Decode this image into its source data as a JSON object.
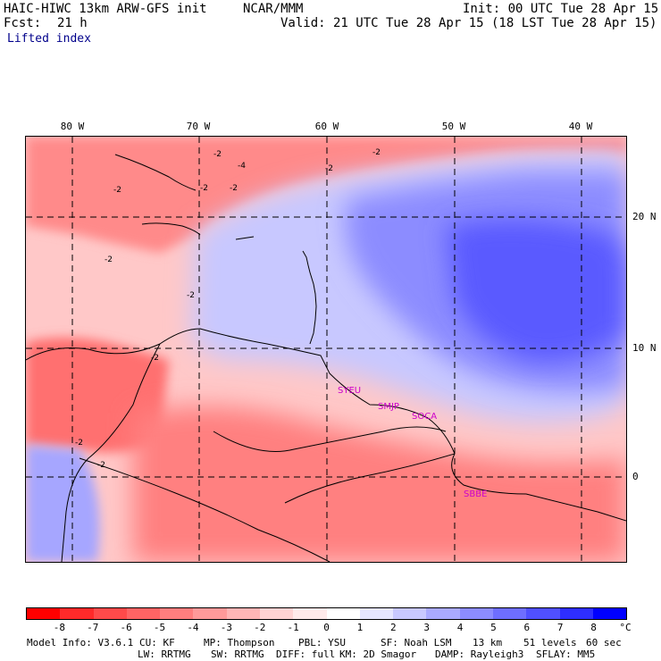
{
  "header": {
    "model": "HAIC-HIWC 13km ARW-GFS init",
    "org": "NCAR/MMM",
    "init": "Init: 00 UTC Tue 28 Apr 15",
    "fcst_label": "Fcst:",
    "fcst_value": "21 h",
    "valid": "Valid: 21 UTC Tue 28 Apr 15 (18 LST Tue 28 Apr 15)",
    "field": "Lifted index"
  },
  "map": {
    "lon_labels": [
      "80 W",
      "70 W",
      "60 W",
      "50 W",
      "40 W"
    ],
    "lat_labels": [
      "20 N",
      "10 N",
      "0"
    ],
    "stations": [
      "SYEU",
      "SMJP",
      "SOCA",
      "SBBE"
    ],
    "contour_labels": [
      "-2",
      "-2",
      "-4",
      "-2",
      "-2",
      "-2",
      "-2",
      "-2",
      "-2",
      "-2",
      "-2",
      "-2"
    ]
  },
  "colorbar": {
    "labels": [
      "-8",
      "-7",
      "-6",
      "-5",
      "-4",
      "-3",
      "-2",
      "-1",
      "0",
      "1",
      "2",
      "3",
      "4",
      "5",
      "6",
      "7",
      "8"
    ],
    "unit": "°C",
    "colors": [
      "#ff0000",
      "#ff2a2a",
      "#ff4a4a",
      "#ff6464",
      "#ff7e7e",
      "#ff9a9a",
      "#ffb5b5",
      "#ffd3d3",
      "#ffeaea",
      "#ffffff",
      "#e6e6ff",
      "#c8c8ff",
      "#aaaaff",
      "#8c8cff",
      "#6e6eff",
      "#5050ff",
      "#2e2eff",
      "#0000ff"
    ]
  },
  "footer": {
    "line1": [
      "Model Info: V3.6.1",
      "CU: KF",
      "MP: Thompson",
      "PBL: YSU",
      "SF: Noah LSM",
      "13 km",
      "51 levels",
      "60 sec"
    ],
    "line2": [
      "LW: RRTMG",
      "SW: RRTMG",
      "DIFF: full",
      "KM: 2D Smagor",
      "DAMP: Rayleigh3",
      "SFLAY: MM5"
    ]
  }
}
